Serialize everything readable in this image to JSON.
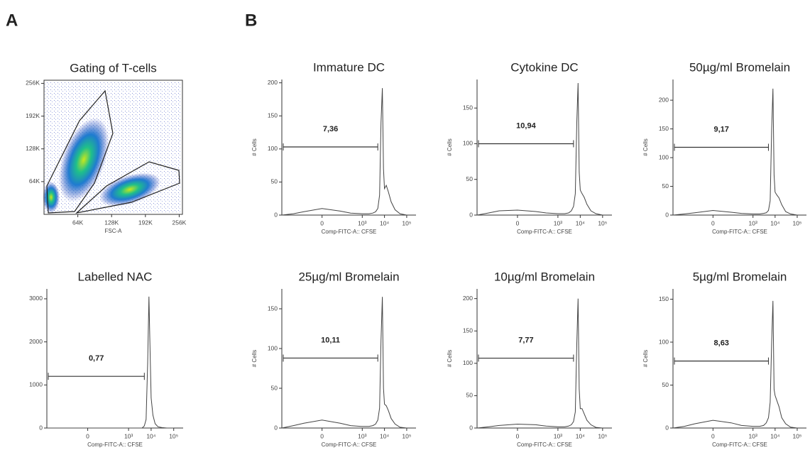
{
  "panel_labels": [
    "A",
    "B"
  ],
  "chart_data": [
    {
      "type": "density",
      "title": "Gating of T-cells",
      "x_label": "FSC-A",
      "xlim": [
        0,
        262144
      ],
      "ylim": [
        0,
        262144
      ],
      "xticks": [
        {
          "value": 64000,
          "label": "64K"
        },
        {
          "value": 128000,
          "label": "128K"
        },
        {
          "value": 192000,
          "label": "192K"
        },
        {
          "value": 256000,
          "label": "256K"
        }
      ],
      "yticks": [
        {
          "value": 64000,
          "label": "64K"
        },
        {
          "value": 128000,
          "label": "128K"
        },
        {
          "value": 192000,
          "label": "192K"
        },
        {
          "value": 256000,
          "label": "256K"
        }
      ]
    },
    {
      "type": "line",
      "xscale": "asinh",
      "title": "Immature DC",
      "x_label": "Comp-FITC-A:: CFSE",
      "y_label": "# Cells",
      "xlim": [
        -1000,
        262144
      ],
      "ylim": [
        0,
        205
      ],
      "xticks": [
        0,
        {
          "value": 1000,
          "label": "10³"
        },
        {
          "value": 10000,
          "label": "10⁴"
        },
        {
          "value": 100000,
          "label": "10⁵"
        }
      ],
      "yticks": [
        0,
        50,
        100,
        150,
        200
      ],
      "x": [
        -1000,
        -300,
        -100,
        0,
        100,
        300,
        1000,
        2000,
        3000,
        4000,
        5000,
        6000,
        7000,
        8000,
        9000,
        10000,
        12000,
        15000,
        20000,
        30000,
        50000,
        100000
      ],
      "values": [
        0,
        2,
        5,
        10,
        6,
        3,
        2,
        2,
        3,
        5,
        10,
        30,
        140,
        192,
        70,
        40,
        45,
        35,
        20,
        8,
        2,
        0
      ],
      "gate": {
        "x": [
          -1000,
          5000
        ],
        "y": 103,
        "label": "7,36"
      }
    },
    {
      "type": "line",
      "xscale": "asinh",
      "title": "Cytokine DC",
      "x_label": "Comp-FITC-A:: CFSE",
      "y_label": "# Cells",
      "xlim": [
        -1000,
        262144
      ],
      "ylim": [
        0,
        190
      ],
      "xticks": [
        0,
        {
          "value": 1000,
          "label": "10³"
        },
        {
          "value": 10000,
          "label": "10⁴"
        },
        {
          "value": 100000,
          "label": "10⁵"
        }
      ],
      "yticks": [
        0,
        50,
        100,
        150
      ],
      "x": [
        -1000,
        -300,
        -100,
        0,
        100,
        300,
        1000,
        2000,
        3000,
        4000,
        5000,
        6000,
        7000,
        8000,
        9000,
        10000,
        12000,
        15000,
        20000,
        30000,
        50000,
        100000
      ],
      "values": [
        0,
        3,
        6,
        7,
        5,
        3,
        2,
        2,
        3,
        6,
        12,
        30,
        130,
        185,
        60,
        35,
        30,
        25,
        15,
        6,
        2,
        0
      ],
      "gate": {
        "x": [
          -1000,
          5000
        ],
        "y": 100,
        "label": "10,94"
      }
    },
    {
      "type": "line",
      "xscale": "asinh",
      "title": "50µg/ml Bromelain",
      "x_label": "Comp-FITC-A:: CFSE",
      "y_label": "# Cells",
      "xlim": [
        -1000,
        262144
      ],
      "ylim": [
        0,
        236
      ],
      "xticks": [
        0,
        {
          "value": 1000,
          "label": "10³"
        },
        {
          "value": 10000,
          "label": "10⁴"
        },
        {
          "value": 100000,
          "label": "10⁵"
        }
      ],
      "yticks": [
        0,
        50,
        100,
        150,
        200
      ],
      "x": [
        -1000,
        -300,
        -100,
        0,
        100,
        300,
        1000,
        2000,
        3000,
        4000,
        5000,
        6000,
        7000,
        8000,
        9000,
        10000,
        12000,
        15000,
        20000,
        30000,
        50000,
        100000
      ],
      "values": [
        0,
        2,
        4,
        8,
        5,
        3,
        2,
        2,
        3,
        4,
        8,
        25,
        150,
        220,
        70,
        40,
        35,
        30,
        18,
        6,
        2,
        0
      ],
      "gate": {
        "x": [
          -1000,
          5000
        ],
        "y": 118,
        "label": "9,17"
      }
    },
    {
      "type": "line",
      "xscale": "asinh",
      "title": "Labelled NAC",
      "x_label": "Comp-FITC-A:: CFSE",
      "xlim": [
        -1000,
        262144
      ],
      "ylim": [
        0,
        3230
      ],
      "xticks": [
        0,
        {
          "value": 1000,
          "label": "10³"
        },
        {
          "value": 10000,
          "label": "10⁴"
        },
        {
          "value": 100000,
          "label": "10⁵"
        }
      ],
      "yticks": [
        0,
        1000,
        2000,
        3000
      ],
      "x": [
        -1000,
        -300,
        -100,
        0,
        100,
        300,
        1000,
        2000,
        3000,
        4000,
        5000,
        6000,
        7000,
        8000,
        9000,
        10000,
        12000,
        15000,
        20000,
        30000,
        50000,
        100000
      ],
      "values": [
        0,
        0,
        0,
        0,
        0,
        0,
        0,
        0,
        0,
        0,
        50,
        200,
        1500,
        3050,
        1800,
        700,
        300,
        100,
        30,
        10,
        0,
        0
      ],
      "gate": {
        "x": [
          -1000,
          5000
        ],
        "y": 1200,
        "label": "0,77"
      }
    },
    {
      "type": "line",
      "xscale": "asinh",
      "title": "25µg/ml Bromelain",
      "x_label": "Comp-FITC-A:: CFSE",
      "y_label": "# Cells",
      "xlim": [
        -1000,
        262144
      ],
      "ylim": [
        0,
        175
      ],
      "xticks": [
        0,
        {
          "value": 1000,
          "label": "10³"
        },
        {
          "value": 10000,
          "label": "10⁴"
        },
        {
          "value": 100000,
          "label": "10⁵"
        }
      ],
      "yticks": [
        0,
        50,
        100,
        150
      ],
      "x": [
        -1000,
        -300,
        -100,
        0,
        100,
        300,
        1000,
        2000,
        3000,
        4000,
        5000,
        6000,
        7000,
        8000,
        9000,
        10000,
        12000,
        15000,
        20000,
        30000,
        50000,
        100000
      ],
      "values": [
        0,
        3,
        6,
        10,
        6,
        3,
        2,
        2,
        3,
        5,
        10,
        25,
        110,
        165,
        50,
        30,
        28,
        22,
        12,
        5,
        1,
        0
      ],
      "gate": {
        "x": [
          -1000,
          5000
        ],
        "y": 88,
        "label": "10,11"
      }
    },
    {
      "type": "line",
      "xscale": "asinh",
      "title": "10µg/ml Bromelain",
      "x_label": "Comp-FITC-A:: CFSE",
      "y_label": "# Cells",
      "xlim": [
        -1000,
        262144
      ],
      "ylim": [
        0,
        215
      ],
      "xticks": [
        0,
        {
          "value": 1000,
          "label": "10³"
        },
        {
          "value": 10000,
          "label": "10⁴"
        },
        {
          "value": 100000,
          "label": "10⁵"
        }
      ],
      "yticks": [
        0,
        50,
        100,
        150,
        200
      ],
      "x": [
        -1000,
        -300,
        -100,
        0,
        100,
        300,
        1000,
        2000,
        3000,
        4000,
        5000,
        6000,
        7000,
        8000,
        9000,
        10000,
        12000,
        15000,
        20000,
        30000,
        50000,
        100000
      ],
      "values": [
        0,
        2,
        4,
        6,
        5,
        3,
        2,
        2,
        3,
        5,
        10,
        25,
        130,
        200,
        60,
        30,
        30,
        22,
        12,
        5,
        1,
        0
      ],
      "gate": {
        "x": [
          -1000,
          5000
        ],
        "y": 108,
        "label": "7,77"
      }
    },
    {
      "type": "line",
      "xscale": "asinh",
      "title": "5µg/ml Bromelain",
      "x_label": "Comp-FITC-A:: CFSE",
      "y_label": "# Cells",
      "xlim": [
        -1000,
        262144
      ],
      "ylim": [
        0,
        162
      ],
      "xticks": [
        0,
        {
          "value": 1000,
          "label": "10³"
        },
        {
          "value": 10000,
          "label": "10⁴"
        },
        {
          "value": 100000,
          "label": "10⁵"
        }
      ],
      "yticks": [
        0,
        50,
        100,
        150
      ],
      "x": [
        -1000,
        -300,
        -100,
        0,
        100,
        300,
        1000,
        2000,
        3000,
        4000,
        5000,
        6000,
        7000,
        8000,
        9000,
        10000,
        12000,
        15000,
        20000,
        30000,
        50000,
        100000
      ],
      "values": [
        0,
        2,
        5,
        9,
        6,
        3,
        2,
        2,
        3,
        6,
        12,
        30,
        100,
        148,
        45,
        38,
        32,
        25,
        12,
        5,
        1,
        0
      ],
      "gate": {
        "x": [
          -1000,
          5000
        ],
        "y": 78,
        "label": "8,63"
      }
    }
  ]
}
